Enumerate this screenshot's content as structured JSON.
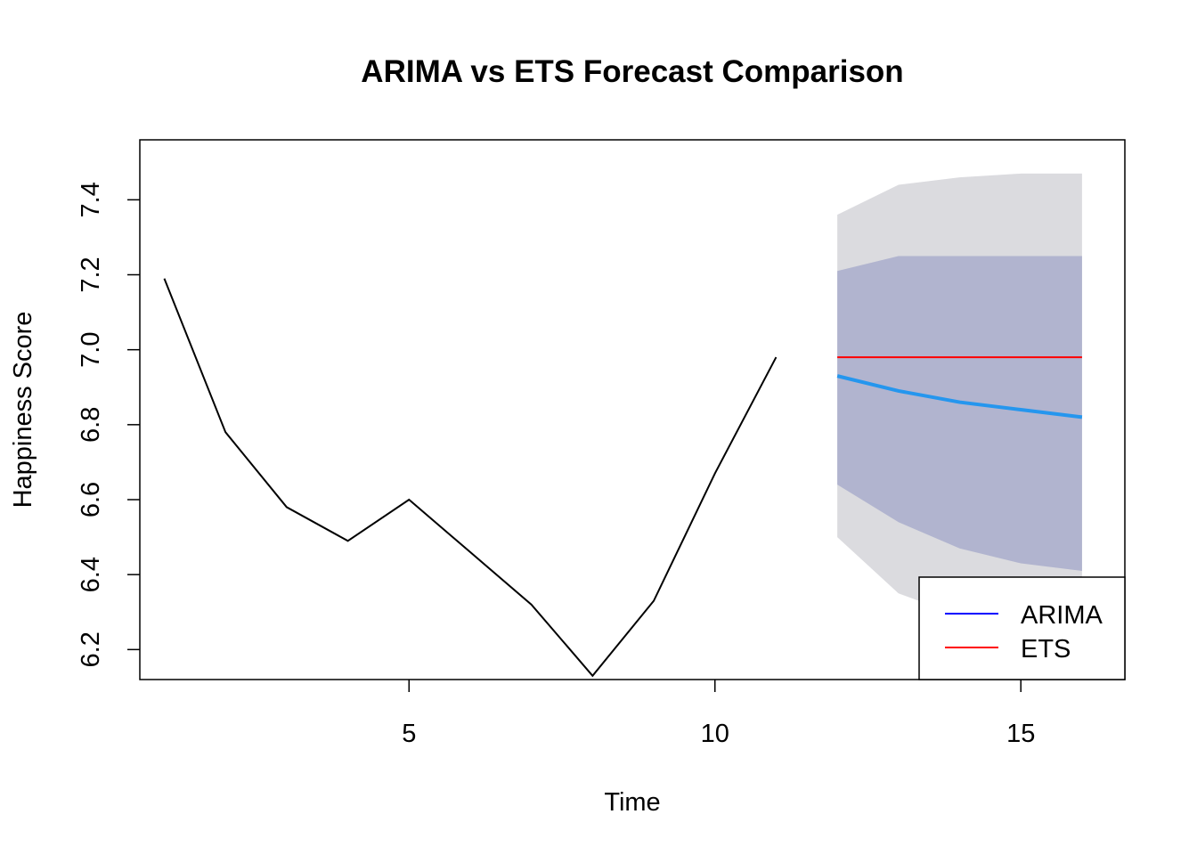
{
  "chart_data": {
    "type": "line",
    "title": "ARIMA vs ETS Forecast Comparison",
    "xlabel": "Time",
    "ylabel": "Happiness Score",
    "xlim": [
      0.6,
      16.7
    ],
    "ylim": [
      6.12,
      7.56
    ],
    "x_ticks": [
      5,
      10,
      15
    ],
    "y_ticks": [
      6.2,
      6.4,
      6.6,
      6.8,
      7.0,
      7.2,
      7.4
    ],
    "x_tick_labels": [
      "5",
      "10",
      "15"
    ],
    "y_tick_labels": [
      "6.2",
      "6.4",
      "6.6",
      "6.8",
      "7.0",
      "7.2",
      "7.4"
    ],
    "grid": false,
    "legend_position": "bottom-right",
    "observed": {
      "x": [
        1,
        2,
        3,
        4,
        5,
        6,
        7,
        8,
        9,
        10,
        11
      ],
      "y": [
        7.19,
        6.78,
        6.58,
        6.49,
        6.6,
        6.46,
        6.32,
        6.13,
        6.33,
        6.67,
        6.98
      ],
      "color": "#000000"
    },
    "forecast_x": [
      12,
      13,
      14,
      15,
      16
    ],
    "arima": {
      "name": "ARIMA",
      "y": [
        6.93,
        6.89,
        6.86,
        6.84,
        6.82
      ],
      "color": "#2596EE",
      "legend_color": "#0000FF",
      "pi80_lower": [
        6.64,
        6.54,
        6.47,
        6.43,
        6.41
      ],
      "pi80_upper": [
        7.21,
        7.25,
        7.25,
        7.25,
        7.25
      ],
      "pi95_lower": [
        6.5,
        6.35,
        6.29,
        6.26,
        6.24
      ],
      "pi95_upper": [
        7.36,
        7.44,
        7.46,
        7.47,
        7.47
      ],
      "pi80_color": "#B1B4CF",
      "pi95_color": "#DBDBDF"
    },
    "ets": {
      "name": "ETS",
      "y": [
        6.98,
        6.98,
        6.98,
        6.98,
        6.98
      ],
      "color": "#FF0000"
    }
  }
}
